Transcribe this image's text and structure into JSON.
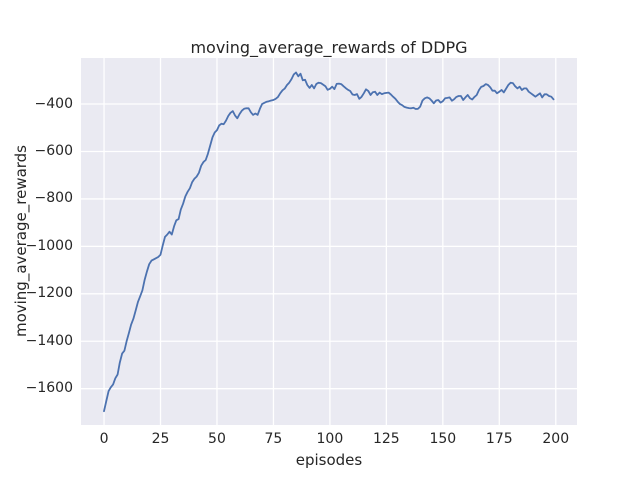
{
  "figure": {
    "title": "moving_average_rewards of DDPG",
    "xlabel": "episodes",
    "ylabel": "moving_average_rewards"
  },
  "chart_data": {
    "type": "line",
    "title": "moving_average_rewards of DDPG",
    "xlabel": "episodes",
    "ylabel": "moving_average_rewards",
    "x_ticks": [
      0,
      25,
      50,
      75,
      100,
      125,
      150,
      175,
      200
    ],
    "x_tick_labels": [
      "0",
      "25",
      "50",
      "75",
      "100",
      "125",
      "150",
      "175",
      "200"
    ],
    "y_ticks": [
      -400,
      -600,
      -800,
      -1000,
      -1200,
      -1400,
      -1600
    ],
    "y_tick_labels": [
      "−400",
      "−600",
      "−800",
      "−1000",
      "−1200",
      "−1400",
      "−1600"
    ],
    "xlim": [
      -10.2,
      209.4
    ],
    "ylim": [
      -1753,
      -206
    ],
    "grid": true,
    "legend_position": "none",
    "colors": {
      "line": "#4c72b0",
      "axes_background": "#eaeaf2",
      "grid": "#ffffff",
      "text": "#262626",
      "figure_background": "#ffffff"
    },
    "series": [
      {
        "name": "DDPG moving average rewards",
        "x_start": 0,
        "x_step": 1,
        "values": [
          -1695,
          -1652,
          -1610,
          -1594,
          -1582,
          -1556,
          -1540,
          -1490,
          -1452,
          -1440,
          -1400,
          -1365,
          -1330,
          -1305,
          -1270,
          -1235,
          -1210,
          -1185,
          -1140,
          -1105,
          -1075,
          -1060,
          -1055,
          -1050,
          -1045,
          -1035,
          -995,
          -960,
          -950,
          -938,
          -950,
          -915,
          -890,
          -885,
          -845,
          -820,
          -790,
          -770,
          -755,
          -730,
          -715,
          -706,
          -690,
          -660,
          -645,
          -636,
          -610,
          -575,
          -540,
          -520,
          -510,
          -490,
          -483,
          -485,
          -470,
          -450,
          -437,
          -430,
          -448,
          -460,
          -442,
          -428,
          -420,
          -418,
          -418,
          -435,
          -446,
          -440,
          -446,
          -420,
          -400,
          -395,
          -390,
          -388,
          -385,
          -383,
          -378,
          -370,
          -355,
          -342,
          -335,
          -320,
          -310,
          -295,
          -275,
          -267,
          -283,
          -272,
          -300,
          -298,
          -320,
          -332,
          -320,
          -334,
          -315,
          -310,
          -312,
          -318,
          -325,
          -340,
          -336,
          -327,
          -337,
          -315,
          -314,
          -316,
          -325,
          -333,
          -340,
          -345,
          -360,
          -362,
          -358,
          -378,
          -370,
          -355,
          -338,
          -345,
          -362,
          -350,
          -348,
          -362,
          -352,
          -358,
          -355,
          -353,
          -352,
          -360,
          -369,
          -378,
          -390,
          -400,
          -405,
          -412,
          -415,
          -417,
          -418,
          -416,
          -421,
          -420,
          -411,
          -385,
          -376,
          -372,
          -376,
          -385,
          -397,
          -385,
          -383,
          -394,
          -388,
          -376,
          -374,
          -372,
          -386,
          -380,
          -370,
          -366,
          -366,
          -383,
          -372,
          -362,
          -375,
          -381,
          -370,
          -362,
          -341,
          -328,
          -324,
          -316,
          -320,
          -330,
          -344,
          -344,
          -355,
          -348,
          -341,
          -351,
          -335,
          -320,
          -310,
          -312,
          -325,
          -334,
          -327,
          -341,
          -334,
          -334,
          -348,
          -355,
          -362,
          -369,
          -362,
          -355,
          -372,
          -359,
          -359,
          -366,
          -369,
          -380
        ]
      }
    ]
  }
}
